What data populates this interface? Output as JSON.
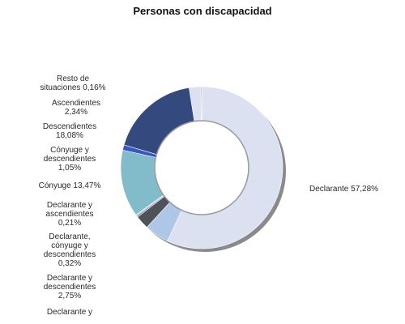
{
  "chart_data": {
    "type": "pie",
    "title": "Personas con discapacidad",
    "donut": true,
    "slices": [
      {
        "name": "Declarante",
        "value": 57.28,
        "label_lines": [
          "Declarante 57,28%"
        ],
        "color": "#dce1f1"
      },
      {
        "name": "Declarante y descendientes (truncated)",
        "value": 4.9,
        "label_lines": [
          "Declarante y"
        ],
        "color": "#aec6e8"
      },
      {
        "name": "Declarante y descendientes",
        "value": 2.75,
        "label_lines": [
          "Declarante y",
          "descendientes",
          "2,75%"
        ],
        "color": "#4f5258"
      },
      {
        "name": "Declarante, cónyuge y descendientes",
        "value": 0.32,
        "label_lines": [
          "Declarante,",
          "cónyuge y",
          "descendientes",
          "0,32%"
        ],
        "color": "#7c90a6"
      },
      {
        "name": "Declarante y ascendientes",
        "value": 0.21,
        "label_lines": [
          "Declarante y",
          "ascendientes",
          "0,21%"
        ],
        "color": "#9bb2c4"
      },
      {
        "name": "Cónyuge",
        "value": 13.47,
        "label_lines": [
          "Cónyuge 13,47%"
        ],
        "color": "#82bccb"
      },
      {
        "name": "Cónyuge y descendientes",
        "value": 1.05,
        "label_lines": [
          "Cónyuge y",
          "descendientes",
          "1,05%"
        ],
        "color": "#3458c4"
      },
      {
        "name": "Descendientes",
        "value": 18.08,
        "label_lines": [
          "Descendientes",
          "18,08%"
        ],
        "color": "#34497e"
      },
      {
        "name": "Ascendientes",
        "value": 2.34,
        "label_lines": [
          "Ascendientes",
          "2,34%"
        ],
        "color": "#dce1f1"
      },
      {
        "name": "Resto de situaciones",
        "value": 0.16,
        "label_lines": [
          "Resto de",
          "situaciones 0,16%"
        ],
        "color": "#6b7a8c"
      }
    ]
  }
}
